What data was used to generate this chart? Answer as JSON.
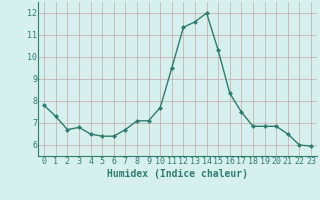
{
  "x": [
    0,
    1,
    2,
    3,
    4,
    5,
    6,
    7,
    8,
    9,
    10,
    11,
    12,
    13,
    14,
    15,
    16,
    17,
    18,
    19,
    20,
    21,
    22,
    23
  ],
  "y": [
    7.8,
    7.3,
    6.7,
    6.8,
    6.5,
    6.4,
    6.4,
    6.7,
    7.1,
    7.1,
    7.7,
    9.5,
    11.35,
    11.6,
    12.0,
    10.3,
    8.35,
    7.5,
    6.85,
    6.85,
    6.85,
    6.5,
    6.0,
    5.95
  ],
  "line_color": "#2e7d6e",
  "marker": "D",
  "markersize": 2.0,
  "linewidth": 1.0,
  "xlabel": "Humidex (Indice chaleur)",
  "xlim": [
    -0.5,
    23.5
  ],
  "ylim": [
    5.5,
    12.5
  ],
  "yticks": [
    6,
    7,
    8,
    9,
    10,
    11,
    12
  ],
  "xticks": [
    0,
    1,
    2,
    3,
    4,
    5,
    6,
    7,
    8,
    9,
    10,
    11,
    12,
    13,
    14,
    15,
    16,
    17,
    18,
    19,
    20,
    21,
    22,
    23
  ],
  "bg_color": "#d6f0ee",
  "grid_color": "#c8a8a8",
  "line_ax_color": "#2e7d6e",
  "label_fontsize": 7.0,
  "tick_fontsize": 6.0
}
